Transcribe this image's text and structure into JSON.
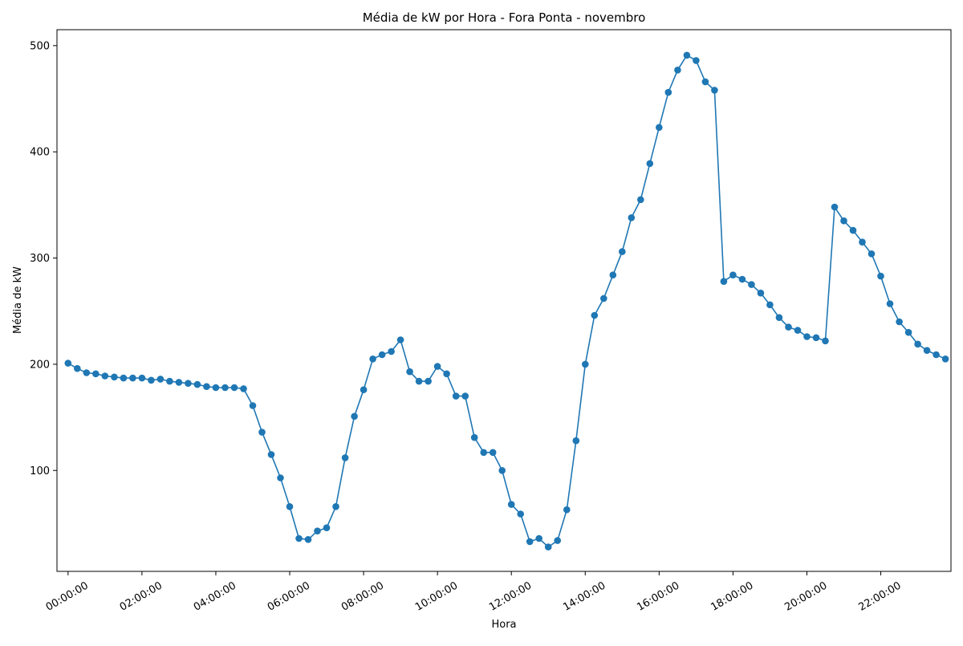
{
  "chart_data": {
    "type": "line",
    "title": "Média de kW por Hora - Fora Ponta - novembro",
    "xlabel": "Hora",
    "ylabel": "Média de kW",
    "xlim": [
      -0.3,
      23.9
    ],
    "ylim": [
      5,
      515
    ],
    "xticks": [
      0,
      2,
      4,
      6,
      8,
      10,
      12,
      14,
      16,
      18,
      20,
      22
    ],
    "xtick_labels": [
      "00:00:00",
      "02:00:00",
      "04:00:00",
      "06:00:00",
      "08:00:00",
      "10:00:00",
      "12:00:00",
      "14:00:00",
      "16:00:00",
      "18:00:00",
      "20:00:00",
      "22:00:00"
    ],
    "yticks": [
      100,
      200,
      300,
      400,
      500
    ],
    "ytick_labels": [
      "100",
      "200",
      "300",
      "400",
      "500"
    ],
    "grid": false,
    "line_color": "#1f77b4",
    "marker": "circle",
    "series": [
      {
        "x": [
          0,
          0.25,
          0.5,
          0.75,
          1,
          1.25,
          1.5,
          1.75,
          2,
          2.25,
          2.5,
          2.75,
          3,
          3.25,
          3.5,
          3.75,
          4,
          4.25,
          4.5,
          4.75,
          5,
          5.25,
          5.5,
          5.75,
          6,
          6.25,
          6.5,
          6.75,
          7,
          7.25,
          7.5,
          7.75,
          8,
          8.25,
          8.5,
          8.75,
          9,
          9.25,
          9.5,
          9.75,
          10,
          10.25,
          10.5,
          10.75,
          11,
          11.25,
          11.5,
          11.75,
          12,
          12.25,
          12.5,
          12.75,
          13,
          13.25,
          13.5,
          13.75,
          14,
          14.25,
          14.5,
          14.75,
          15,
          15.25,
          15.5,
          15.75,
          16,
          16.25,
          16.5,
          16.75,
          17,
          17.25,
          17.5,
          17.75,
          18,
          18.25,
          18.5,
          18.75,
          19,
          19.25,
          19.5,
          19.75,
          20,
          20.25,
          20.5,
          20.75,
          21,
          21.25,
          21.5,
          21.75,
          22,
          22.25,
          22.5,
          22.75,
          23,
          23.25,
          23.5,
          23.75
        ],
        "values": [
          201,
          196,
          192,
          191,
          189,
          188,
          187,
          187,
          187,
          185,
          186,
          184,
          183,
          182,
          181,
          179,
          178,
          178,
          178,
          177,
          161,
          136,
          115,
          93,
          66,
          36,
          35,
          43,
          46,
          66,
          112,
          151,
          176,
          205,
          209,
          212,
          223,
          193,
          184,
          184,
          198,
          191,
          170,
          170,
          131,
          117,
          117,
          100,
          68,
          59,
          33,
          36,
          28,
          34,
          63,
          128,
          200,
          246,
          262,
          284,
          306,
          338,
          355,
          389,
          423,
          456,
          477,
          491,
          486,
          466,
          458,
          278,
          284,
          280,
          275,
          267,
          256,
          244,
          235,
          232,
          226,
          225,
          222,
          348,
          335,
          326,
          315,
          304,
          283,
          257,
          240,
          230,
          219,
          213,
          209,
          205
        ]
      }
    ]
  }
}
